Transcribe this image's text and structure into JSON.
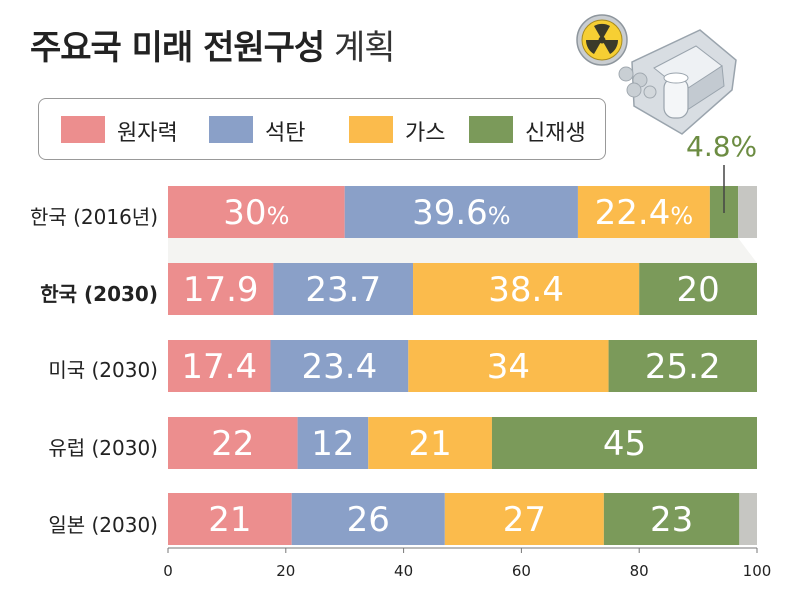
{
  "title": "주요국 미래 전원구성",
  "subtitle": "계획",
  "legend": [
    {
      "label": "원자력",
      "color": "#ec8e8e"
    },
    {
      "label": "석탄",
      "color": "#8aa0c8"
    },
    {
      "label": "가스",
      "color": "#fbbb4c"
    },
    {
      "label": "신재생",
      "color": "#7b9a5a"
    }
  ],
  "other_color": "#c6c6c2",
  "annotation": "4.8%",
  "icon": "nuclear-plant-icon",
  "chart_data": {
    "type": "bar",
    "orientation": "horizontal",
    "stacked": true,
    "categories": [
      "한국 (2016년)",
      "한국 (2030)",
      "미국 (2030)",
      "유럽 (2030)",
      "일본 (2030)"
    ],
    "series": [
      {
        "name": "원자력",
        "values": [
          30,
          17.9,
          17.4,
          22,
          21
        ],
        "labels": [
          "30%",
          "17.9",
          "17.4",
          "22",
          "21"
        ]
      },
      {
        "name": "석탄",
        "values": [
          39.6,
          23.7,
          23.4,
          12,
          26
        ],
        "labels": [
          "39.6%",
          "23.7",
          "23.4",
          "12",
          "26"
        ]
      },
      {
        "name": "가스",
        "values": [
          22.4,
          38.4,
          34,
          21,
          27
        ],
        "labels": [
          "22.4%",
          "38.4",
          "34",
          "21",
          "27"
        ]
      },
      {
        "name": "신재생",
        "values": [
          4.8,
          20,
          25.2,
          45,
          23
        ],
        "labels": [
          "",
          "20",
          "25.2",
          "45",
          "23"
        ]
      }
    ],
    "xlim": [
      0,
      100
    ],
    "xticks": [
      "0",
      "20",
      "40",
      "60",
      "80",
      "100"
    ]
  }
}
